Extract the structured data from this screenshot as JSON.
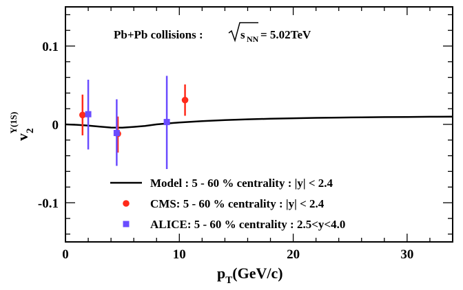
{
  "chart_data": {
    "type": "scatter",
    "annotation_prefix": "Pb+Pb collisions :",
    "annotation_energy": "= 5.02TeV",
    "xlabel": "p",
    "xlabel_sub": "T",
    "xlabel_units": "(GeV/c)",
    "ylabel": "v",
    "ylabel_sub": "2",
    "ylabel_sup": "Υ(1S)",
    "xlim": [
      0,
      34
    ],
    "ylim": [
      -0.15,
      0.15
    ],
    "x_ticks": [
      0,
      10,
      20,
      30
    ],
    "x_tick_labels": [
      "0",
      "10",
      "20",
      "30"
    ],
    "y_ticks": [
      -0.1,
      0,
      0.1
    ],
    "y_tick_labels": [
      "-0.1",
      "0",
      "0.1"
    ],
    "grid": false,
    "legend_position": "lower-right",
    "series": [
      {
        "name": "Model : 5 - 60 % centrality : |y| < 2.4",
        "kind": "line",
        "color": "#000000",
        "x": [
          0,
          1,
          2,
          3,
          4,
          5,
          6,
          7,
          8,
          10,
          12,
          14,
          16,
          18,
          20,
          22,
          24,
          26,
          28,
          30,
          32,
          34
        ],
        "y": [
          0.0,
          -0.0005,
          -0.0015,
          -0.0028,
          -0.004,
          -0.0042,
          -0.0032,
          -0.002,
          0.0,
          0.0025,
          0.0042,
          0.0055,
          0.0065,
          0.0072,
          0.0078,
          0.0083,
          0.0087,
          0.009,
          0.0093,
          0.0095,
          0.0097,
          0.0099
        ]
      },
      {
        "name": "CMS: 5 - 60 % centrality : |y| < 2.4",
        "kind": "points",
        "marker": "circle",
        "color": "#ff2a1a",
        "x": [
          1.5,
          4.6,
          10.5
        ],
        "y": [
          0.012,
          -0.012,
          0.031
        ],
        "err_low": [
          0.026,
          0.024,
          0.02
        ],
        "err_high": [
          0.026,
          0.022,
          0.02
        ]
      },
      {
        "name": "ALICE: 5 - 60 % centrality : 2.5<y<4.0",
        "kind": "points",
        "marker": "square",
        "color": "#6a4cff",
        "x": [
          2.0,
          4.5,
          8.9
        ],
        "y": [
          0.013,
          -0.011,
          0.003
        ],
        "err_low": [
          0.045,
          0.042,
          0.06
        ],
        "err_high": [
          0.044,
          0.043,
          0.059
        ]
      }
    ]
  }
}
